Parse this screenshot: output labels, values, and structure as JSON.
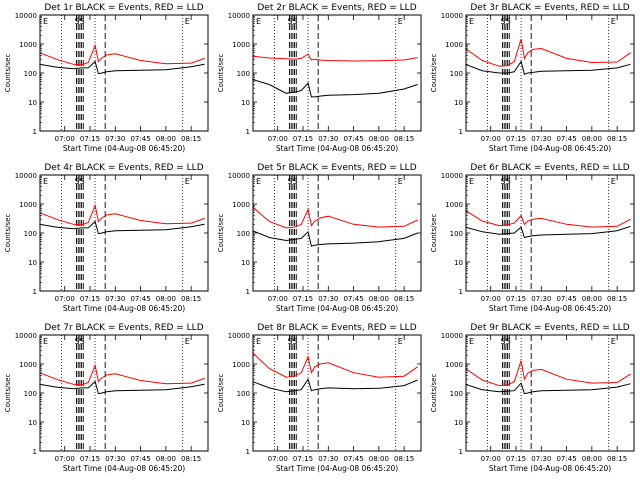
{
  "colors": {
    "events": "#000000",
    "lld": "#ff0000",
    "background": "#ffffff"
  },
  "chart_data": [
    {
      "type": "line",
      "title": "Det 1r BLACK = Events, RED = LLD",
      "ylabel": "Counts/sec",
      "xlabel": "Start Time (04-Aug-08 06:45:20)",
      "yscale": "log",
      "ylim": [
        1,
        10000
      ],
      "xlim": [
        "06:45:20",
        "08:25:00"
      ],
      "xticks": [
        "07:00",
        "07:15",
        "07:30",
        "07:45",
        "08:00",
        "08:15"
      ],
      "yticks": [
        "1",
        "10",
        "100",
        "1000",
        "10000"
      ],
      "annotations": [
        "E",
        "SS",
        "E"
      ],
      "series": [
        {
          "color": "events",
          "x": [
            "06:45",
            "06:55",
            "07:05",
            "07:10",
            "07:14",
            "07:18",
            "07:20",
            "07:22",
            "07:25",
            "07:30",
            "07:45",
            "08:00",
            "08:15",
            "08:23"
          ],
          "y": [
            200,
            160,
            140,
            150,
            150,
            250,
            95,
            100,
            110,
            120,
            125,
            130,
            165,
            200
          ]
        },
        {
          "color": "lld",
          "x": [
            "06:45",
            "06:55",
            "07:05",
            "07:10",
            "07:14",
            "07:18",
            "07:20",
            "07:22",
            "07:25",
            "07:30",
            "07:45",
            "08:00",
            "08:15",
            "08:23"
          ],
          "y": [
            500,
            300,
            200,
            190,
            230,
            900,
            250,
            330,
            420,
            460,
            270,
            210,
            220,
            320
          ]
        }
      ]
    },
    {
      "type": "line",
      "title": "Det 2r BLACK = Events, RED = LLD",
      "ylabel": "Counts/sec",
      "xlabel": "Start Time (04-Aug-08 06:45:20)",
      "yscale": "log",
      "ylim": [
        1,
        10000
      ],
      "xlim": [
        "06:45:20",
        "08:25:00"
      ],
      "xticks": [
        "07:00",
        "07:15",
        "07:30",
        "07:45",
        "08:00",
        "08:15"
      ],
      "yticks": [
        "1",
        "10",
        "100",
        "1000",
        "10000"
      ],
      "annotations": [
        "E",
        "SS",
        "E"
      ],
      "series": [
        {
          "color": "events",
          "x": [
            "06:45",
            "06:55",
            "07:05",
            "07:10",
            "07:14",
            "07:18",
            "07:20",
            "07:22",
            "07:25",
            "07:30",
            "07:45",
            "08:00",
            "08:15",
            "08:23"
          ],
          "y": [
            60,
            40,
            20,
            22,
            25,
            45,
            15,
            15,
            16,
            17,
            18,
            20,
            28,
            40
          ]
        },
        {
          "color": "lld",
          "x": [
            "06:45",
            "06:55",
            "07:05",
            "07:10",
            "07:14",
            "07:18",
            "07:20",
            "07:22",
            "07:25",
            "07:30",
            "07:45",
            "08:00",
            "08:15",
            "08:23"
          ],
          "y": [
            380,
            330,
            310,
            300,
            320,
            450,
            280,
            300,
            280,
            270,
            260,
            265,
            280,
            340
          ]
        }
      ]
    },
    {
      "type": "line",
      "title": "Det 3r BLACK = Events, RED = LLD",
      "ylabel": "Counts/sec",
      "xlabel": "Start Time (04-Aug-08 06:45:20)",
      "yscale": "log",
      "ylim": [
        1,
        10000
      ],
      "xlim": [
        "06:45:20",
        "08:25:00"
      ],
      "xticks": [
        "07:00",
        "07:15",
        "07:30",
        "07:45",
        "08:00",
        "08:15"
      ],
      "yticks": [
        "1",
        "10",
        "100",
        "1000",
        "10000"
      ],
      "annotations": [
        "E",
        "SS",
        "E"
      ],
      "series": [
        {
          "color": "events",
          "x": [
            "06:45",
            "06:55",
            "07:05",
            "07:10",
            "07:14",
            "07:18",
            "07:20",
            "07:22",
            "07:25",
            "07:30",
            "07:45",
            "08:00",
            "08:15",
            "08:23"
          ],
          "y": [
            200,
            120,
            100,
            100,
            110,
            250,
            90,
            100,
            105,
            115,
            120,
            125,
            150,
            200
          ]
        },
        {
          "color": "lld",
          "x": [
            "06:45",
            "06:55",
            "07:05",
            "07:10",
            "07:14",
            "07:18",
            "07:20",
            "07:22",
            "07:25",
            "07:30",
            "07:45",
            "08:00",
            "08:15",
            "08:23"
          ],
          "y": [
            700,
            270,
            170,
            180,
            250,
            1500,
            320,
            500,
            650,
            700,
            320,
            230,
            240,
            500
          ]
        }
      ]
    },
    {
      "type": "line",
      "title": "Det 4r BLACK = Events, RED = LLD",
      "ylabel": "Counts/sec",
      "xlabel": "Start Time (04-Aug-08 06:45:20)",
      "yscale": "log",
      "ylim": [
        1,
        10000
      ],
      "xlim": [
        "06:45:20",
        "08:25:00"
      ],
      "xticks": [
        "07:00",
        "07:15",
        "07:30",
        "07:45",
        "08:00",
        "08:15"
      ],
      "yticks": [
        "1",
        "10",
        "100",
        "1000",
        "10000"
      ],
      "annotations": [
        "E",
        "SS",
        "E"
      ],
      "series": [
        {
          "color": "events",
          "x": [
            "06:45",
            "06:55",
            "07:05",
            "07:10",
            "07:14",
            "07:18",
            "07:20",
            "07:22",
            "07:25",
            "07:30",
            "07:45",
            "08:00",
            "08:15",
            "08:23"
          ],
          "y": [
            200,
            160,
            140,
            150,
            150,
            250,
            95,
            100,
            110,
            120,
            125,
            130,
            165,
            200
          ]
        },
        {
          "color": "lld",
          "x": [
            "06:45",
            "06:55",
            "07:05",
            "07:10",
            "07:14",
            "07:18",
            "07:20",
            "07:22",
            "07:25",
            "07:30",
            "07:45",
            "08:00",
            "08:15",
            "08:23"
          ],
          "y": [
            500,
            300,
            200,
            190,
            230,
            900,
            250,
            330,
            420,
            460,
            270,
            210,
            220,
            320
          ]
        }
      ]
    },
    {
      "type": "line",
      "title": "Det 5r BLACK = Events, RED = LLD",
      "ylabel": "Counts/sec",
      "xlabel": "Start Time (04-Aug-08 06:45:20)",
      "yscale": "log",
      "ylim": [
        1,
        10000
      ],
      "xlim": [
        "06:45:20",
        "08:25:00"
      ],
      "xticks": [
        "07:00",
        "07:15",
        "07:30",
        "07:45",
        "08:00",
        "08:15"
      ],
      "yticks": [
        "1",
        "10",
        "100",
        "1000",
        "10000"
      ],
      "annotations": [
        "E",
        "SS",
        "E"
      ],
      "series": [
        {
          "color": "events",
          "x": [
            "06:45",
            "06:55",
            "07:05",
            "07:10",
            "07:14",
            "07:18",
            "07:20",
            "07:22",
            "07:25",
            "07:30",
            "07:45",
            "08:00",
            "08:15",
            "08:23"
          ],
          "y": [
            120,
            70,
            55,
            60,
            65,
            110,
            35,
            38,
            40,
            42,
            45,
            50,
            65,
            100
          ]
        },
        {
          "color": "lld",
          "x": [
            "06:45",
            "06:55",
            "07:05",
            "07:10",
            "07:14",
            "07:18",
            "07:20",
            "07:22",
            "07:25",
            "07:30",
            "07:45",
            "08:00",
            "08:15",
            "08:23"
          ],
          "y": [
            800,
            250,
            150,
            160,
            200,
            650,
            180,
            260,
            330,
            380,
            200,
            160,
            170,
            280
          ]
        }
      ]
    },
    {
      "type": "line",
      "title": "Det 6r BLACK = Events, RED = LLD",
      "ylabel": "Counts/sec",
      "xlabel": "Start Time (04-Aug-08 06:45:20)",
      "yscale": "log",
      "ylim": [
        1,
        10000
      ],
      "xlim": [
        "06:45:20",
        "08:25:00"
      ],
      "xticks": [
        "07:00",
        "07:15",
        "07:30",
        "07:45",
        "08:00",
        "08:15"
      ],
      "yticks": [
        "1",
        "10",
        "100",
        "1000",
        "10000"
      ],
      "annotations": [
        "E",
        "SS",
        "E"
      ],
      "series": [
        {
          "color": "events",
          "x": [
            "06:45",
            "06:55",
            "07:05",
            "07:10",
            "07:14",
            "07:18",
            "07:20",
            "07:22",
            "07:25",
            "07:30",
            "07:45",
            "08:00",
            "08:15",
            "08:23"
          ],
          "y": [
            160,
            110,
            90,
            95,
            100,
            160,
            70,
            75,
            80,
            85,
            90,
            95,
            120,
            170
          ]
        },
        {
          "color": "lld",
          "x": [
            "06:45",
            "06:55",
            "07:05",
            "07:10",
            "07:14",
            "07:18",
            "07:20",
            "07:22",
            "07:25",
            "07:30",
            "07:45",
            "08:00",
            "08:15",
            "08:23"
          ],
          "y": [
            600,
            260,
            180,
            190,
            220,
            400,
            200,
            260,
            300,
            320,
            200,
            160,
            170,
            300
          ]
        }
      ]
    },
    {
      "type": "line",
      "title": "Det 7r BLACK = Events, RED = LLD",
      "ylabel": "Counts/sec",
      "xlabel": "Start Time (04-Aug-08 06:45:20)",
      "yscale": "log",
      "ylim": [
        1,
        10000
      ],
      "xlim": [
        "06:45:20",
        "08:25:00"
      ],
      "xticks": [
        "07:00",
        "07:15",
        "07:30",
        "07:45",
        "08:00",
        "08:15"
      ],
      "yticks": [
        "1",
        "10",
        "100",
        "1000",
        "10000"
      ],
      "annotations": [
        "E",
        "SS",
        "E"
      ],
      "series": [
        {
          "color": "events",
          "x": [
            "06:45",
            "06:55",
            "07:05",
            "07:10",
            "07:14",
            "07:18",
            "07:20",
            "07:22",
            "07:25",
            "07:30",
            "07:45",
            "08:00",
            "08:15",
            "08:23"
          ],
          "y": [
            200,
            160,
            140,
            150,
            150,
            250,
            95,
            100,
            110,
            120,
            125,
            130,
            165,
            200
          ]
        },
        {
          "color": "lld",
          "x": [
            "06:45",
            "06:55",
            "07:05",
            "07:10",
            "07:14",
            "07:18",
            "07:20",
            "07:22",
            "07:25",
            "07:30",
            "07:45",
            "08:00",
            "08:15",
            "08:23"
          ],
          "y": [
            500,
            300,
            200,
            190,
            230,
            900,
            250,
            330,
            420,
            460,
            270,
            210,
            220,
            320
          ]
        }
      ]
    },
    {
      "type": "line",
      "title": "Det 8r BLACK = Events, RED = LLD",
      "ylabel": "Counts/sec",
      "xlabel": "Start Time (04-Aug-08 06:45:20)",
      "yscale": "log",
      "ylim": [
        1,
        10000
      ],
      "xlim": [
        "06:45:20",
        "08:25:00"
      ],
      "xticks": [
        "07:00",
        "07:15",
        "07:30",
        "07:45",
        "08:00",
        "08:15"
      ],
      "yticks": [
        "1",
        "10",
        "100",
        "1000",
        "10000"
      ],
      "annotations": [
        "E",
        "SS",
        "E"
      ],
      "series": [
        {
          "color": "events",
          "x": [
            "06:45",
            "06:55",
            "07:05",
            "07:10",
            "07:14",
            "07:18",
            "07:20",
            "07:22",
            "07:25",
            "07:30",
            "07:45",
            "08:00",
            "08:15",
            "08:23"
          ],
          "y": [
            250,
            150,
            110,
            120,
            130,
            300,
            120,
            130,
            140,
            150,
            140,
            145,
            180,
            280
          ]
        },
        {
          "color": "lld",
          "x": [
            "06:45",
            "06:55",
            "07:05",
            "07:10",
            "07:14",
            "07:18",
            "07:20",
            "07:22",
            "07:25",
            "07:30",
            "07:45",
            "08:00",
            "08:15",
            "08:23"
          ],
          "y": [
            2500,
            700,
            350,
            380,
            500,
            1800,
            500,
            800,
            1000,
            1100,
            500,
            350,
            380,
            800
          ]
        }
      ]
    },
    {
      "type": "line",
      "title": "Det 9r BLACK = Events, RED = LLD",
      "ylabel": "Counts/sec",
      "xlabel": "Start Time (04-Aug-08 06:45:20)",
      "yscale": "log",
      "ylim": [
        1,
        10000
      ],
      "xlim": [
        "06:45:20",
        "08:25:00"
      ],
      "xticks": [
        "07:00",
        "07:15",
        "07:30",
        "07:45",
        "08:00",
        "08:15"
      ],
      "yticks": [
        "1",
        "10",
        "100",
        "1000",
        "10000"
      ],
      "annotations": [
        "E",
        "SS",
        "E"
      ],
      "series": [
        {
          "color": "events",
          "x": [
            "06:45",
            "06:55",
            "07:05",
            "07:10",
            "07:14",
            "07:18",
            "07:20",
            "07:22",
            "07:25",
            "07:30",
            "07:45",
            "08:00",
            "08:15",
            "08:23"
          ],
          "y": [
            200,
            130,
            110,
            115,
            120,
            220,
            95,
            100,
            110,
            120,
            125,
            130,
            160,
            210
          ]
        },
        {
          "color": "lld",
          "x": [
            "06:45",
            "06:55",
            "07:05",
            "07:10",
            "07:14",
            "07:18",
            "07:20",
            "07:22",
            "07:25",
            "07:30",
            "07:45",
            "08:00",
            "08:15",
            "08:23"
          ],
          "y": [
            700,
            280,
            180,
            190,
            250,
            1300,
            300,
            480,
            600,
            650,
            300,
            220,
            230,
            450
          ]
        }
      ]
    }
  ]
}
